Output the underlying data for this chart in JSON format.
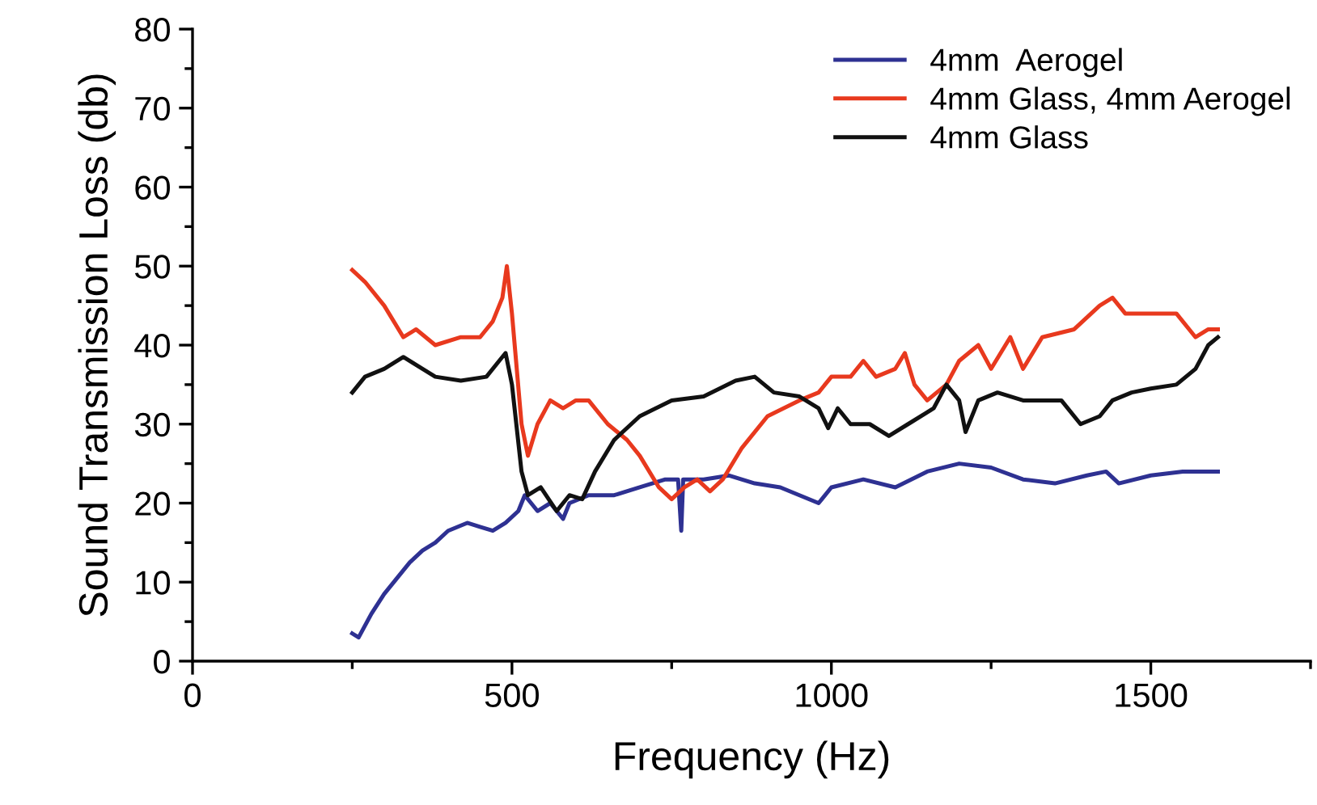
{
  "chart_data": {
    "type": "line",
    "xlabel": "Frequency (Hz)",
    "ylabel": "Sound Transmission Loss (db)",
    "xlim": [
      0,
      1750
    ],
    "xticks": [
      0,
      500,
      1000,
      1500
    ],
    "ylim": [
      0,
      80
    ],
    "yticks": [
      0,
      10,
      20,
      30,
      40,
      50,
      60,
      70,
      80
    ],
    "grid": false,
    "legend": "top right",
    "line_style": "solid",
    "marker": "none",
    "series": [
      {
        "name": "4mm  Aerogel",
        "color": "#2e3192",
        "x": [
          250,
          260,
          280,
          300,
          320,
          340,
          360,
          380,
          400,
          430,
          450,
          470,
          490,
          510,
          520,
          540,
          560,
          580,
          590,
          620,
          660,
          700,
          740,
          760,
          765,
          768,
          800,
          840,
          880,
          920,
          950,
          980,
          1000,
          1050,
          1100,
          1150,
          1200,
          1250,
          1300,
          1350,
          1400,
          1430,
          1450,
          1500,
          1550,
          1605
        ],
        "values": [
          3.5,
          3,
          6,
          8.5,
          10.5,
          12.5,
          14,
          15,
          16.5,
          17.5,
          17,
          16.5,
          17.5,
          19,
          21,
          19,
          20,
          18,
          20,
          21,
          21,
          22,
          23,
          23,
          16.5,
          23,
          23,
          23.5,
          22.5,
          22,
          21,
          20,
          22,
          23,
          22,
          24,
          25,
          24.5,
          23,
          22.5,
          23.5,
          24,
          22.5,
          23.5,
          24,
          24
        ]
      },
      {
        "name": "4mm Glass, 4mm Aerogel",
        "color": "#e8391e",
        "x": [
          250,
          270,
          300,
          330,
          350,
          380,
          420,
          450,
          470,
          485,
          492,
          500,
          515,
          525,
          540,
          560,
          580,
          600,
          620,
          650,
          680,
          700,
          730,
          750,
          770,
          790,
          810,
          830,
          860,
          900,
          950,
          980,
          1000,
          1030,
          1050,
          1070,
          1100,
          1115,
          1130,
          1150,
          1180,
          1200,
          1230,
          1250,
          1280,
          1300,
          1330,
          1380,
          1420,
          1440,
          1460,
          1500,
          1540,
          1570,
          1590,
          1605
        ],
        "values": [
          49.5,
          48,
          45,
          41,
          42,
          40,
          41,
          41,
          43,
          46,
          50,
          44,
          30,
          26,
          30,
          33,
          32,
          33,
          33,
          30,
          28,
          26,
          22,
          20.5,
          22,
          23,
          21.5,
          23,
          27,
          31,
          33,
          34,
          36,
          36,
          38,
          36,
          37,
          39,
          35,
          33,
          35,
          38,
          40,
          37,
          41,
          37,
          41,
          42,
          45,
          46,
          44,
          44,
          44,
          41,
          42,
          42
        ]
      },
      {
        "name": "4mm Glass",
        "color": "#111111",
        "x": [
          250,
          270,
          300,
          330,
          360,
          380,
          420,
          460,
          480,
          490,
          500,
          515,
          525,
          545,
          570,
          590,
          610,
          630,
          660,
          700,
          750,
          800,
          850,
          880,
          910,
          950,
          980,
          995,
          1010,
          1030,
          1060,
          1090,
          1120,
          1160,
          1180,
          1200,
          1210,
          1230,
          1260,
          1300,
          1360,
          1390,
          1420,
          1440,
          1470,
          1500,
          1540,
          1570,
          1590,
          1605
        ],
        "values": [
          34,
          36,
          37,
          38.5,
          37,
          36,
          35.5,
          36,
          38,
          39,
          35,
          24,
          21,
          22,
          19,
          21,
          20.5,
          24,
          28,
          31,
          33,
          33.5,
          35.5,
          36,
          34,
          33.5,
          32,
          29.5,
          32,
          30,
          30,
          28.5,
          30,
          32,
          35,
          33,
          29,
          33,
          34,
          33,
          33,
          30,
          31,
          33,
          34,
          34.5,
          35,
          37,
          40,
          41
        ]
      }
    ]
  }
}
